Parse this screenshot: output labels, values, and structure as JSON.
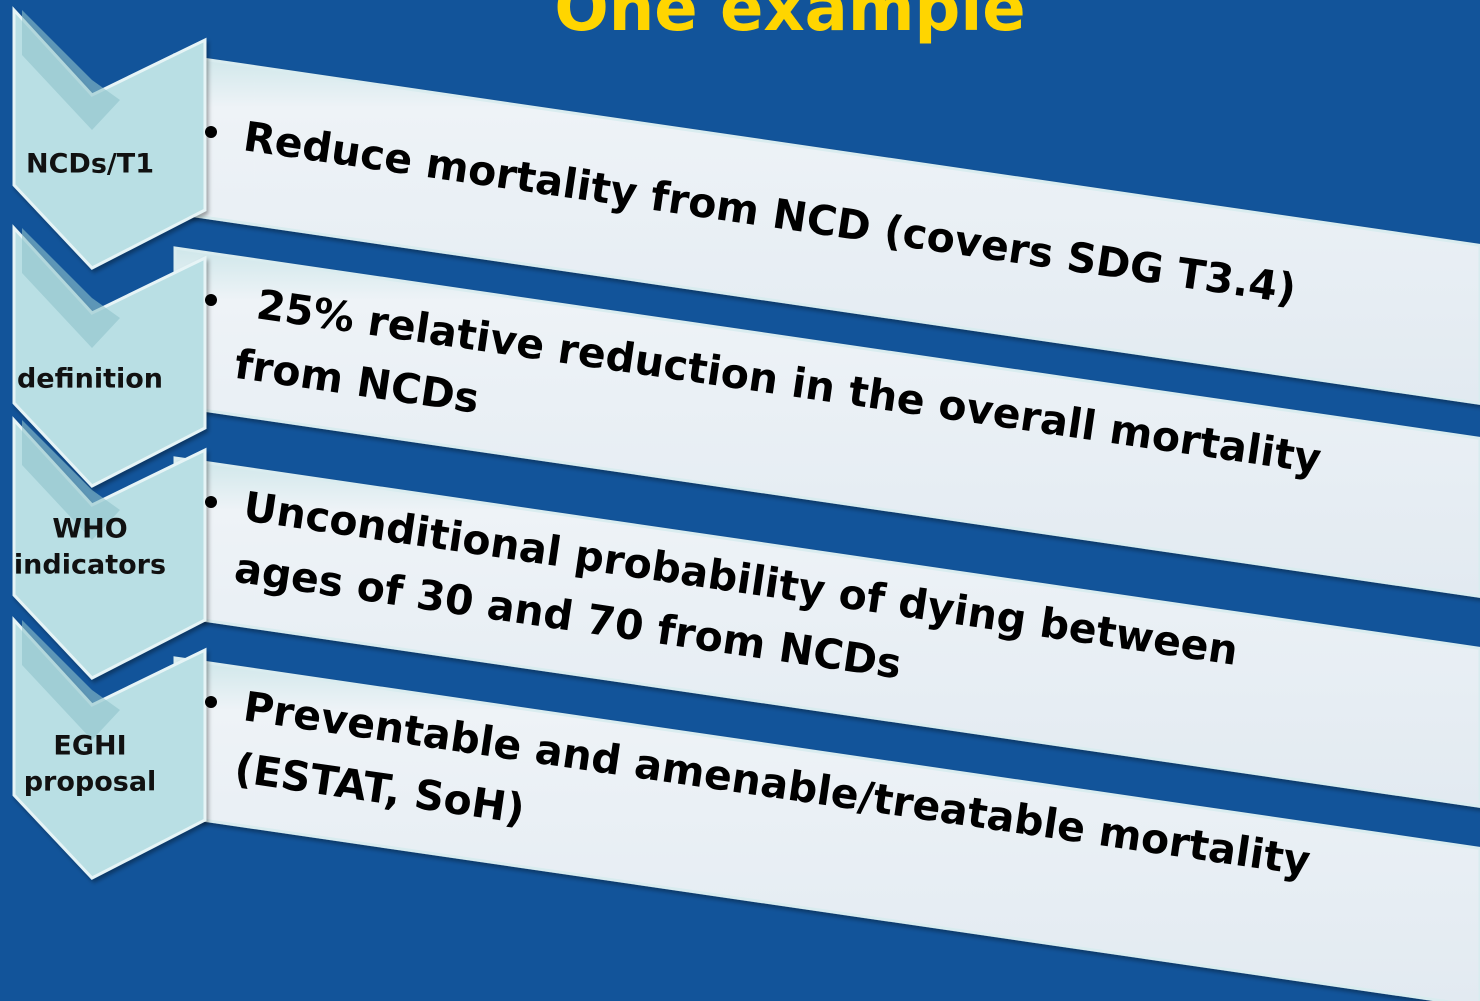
{
  "title": "One example",
  "steps": [
    {
      "label": [
        "NCDs/T1"
      ],
      "lines": [
        "Reduce mortality from NCD (covers SDG T3.4)"
      ]
    },
    {
      "label": [
        "definition"
      ],
      "lines": [
        " 25% relative reduction in the overall mortality",
        "from NCDs"
      ]
    },
    {
      "label": [
        "WHO",
        "indicators"
      ],
      "lines": [
        "Unconditional probability of dying between",
        "ages of 30 and 70 from NCDs"
      ]
    },
    {
      "label": [
        "EGHI",
        "proposal"
      ],
      "lines": [
        "Preventable and amenable/treatable mortality",
        "(ESTAT, SoH)"
      ]
    }
  ]
}
